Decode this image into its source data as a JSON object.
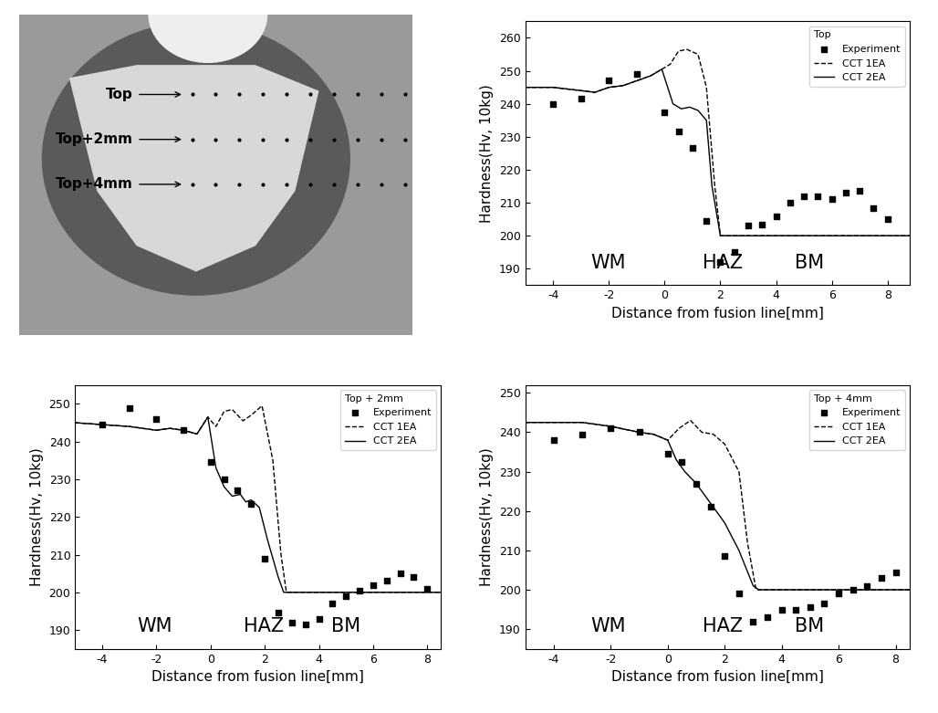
{
  "macrograph": {
    "labels": [
      "Top",
      "Top+2mm",
      "Top+4mm"
    ]
  },
  "chart_data": [
    {
      "type": "line",
      "title": "Top",
      "x_label": "Distance from fusion line[mm]",
      "y_label": "Hardness(Hv, 10kg)",
      "annotations": [
        "WM",
        "HAZ",
        "BM"
      ],
      "legend": "upper right",
      "xlim": [
        -5,
        8.8
      ],
      "xticks": [
        -4,
        -2,
        0,
        2,
        4,
        6,
        8
      ],
      "ylim": [
        185,
        265
      ],
      "yticks": [
        190,
        200,
        210,
        220,
        230,
        240,
        250,
        260
      ],
      "series": [
        {
          "name": "Experiment",
          "type": "scatter",
          "marker": "square",
          "color": "#000000",
          "x": [
            -4,
            -3,
            -2,
            -1,
            0,
            0.5,
            1,
            1.5,
            2,
            2.5,
            3,
            3.5,
            4,
            4.5,
            5,
            5.5,
            6,
            6.5,
            7,
            7.5,
            8
          ],
          "values": [
            240,
            241.5,
            247,
            249,
            237.5,
            231.5,
            226.5,
            204.5,
            192,
            195,
            203,
            203.5,
            206,
            210,
            212,
            212,
            211,
            213,
            213.5,
            208.5,
            205
          ]
        },
        {
          "name": "CCT 1EA",
          "type": "line",
          "line_style": "dashed",
          "color": "#000000",
          "x": [
            -5,
            -4,
            -3,
            -2.5,
            -2,
            -1.5,
            -1,
            -0.5,
            -0.1,
            0.2,
            0.5,
            0.8,
            1.2,
            1.5,
            1.8,
            2,
            8.8
          ],
          "values": [
            245,
            245,
            244,
            243.5,
            245,
            245.5,
            247,
            248.5,
            250.5,
            252,
            256,
            256.5,
            255,
            245,
            215,
            200,
            200
          ]
        },
        {
          "name": "CCT 2EA",
          "type": "line",
          "line_style": "solid",
          "color": "#000000",
          "x": [
            -5,
            -4,
            -3,
            -2.5,
            -2,
            -1.5,
            -1,
            -0.5,
            -0.1,
            0.3,
            0.6,
            0.9,
            1.2,
            1.5,
            1.7,
            2,
            8.8
          ],
          "values": [
            245,
            245,
            244,
            243.5,
            245,
            245.5,
            247,
            248.5,
            250.5,
            240,
            238.5,
            239,
            238,
            235,
            215,
            200,
            200
          ]
        }
      ]
    },
    {
      "type": "line",
      "title": "Top + 2mm",
      "x_label": "Distance from fusion line[mm]",
      "y_label": "Hardness(Hv, 10kg)",
      "annotations": [
        "WM",
        "HAZ",
        "BM"
      ],
      "legend": "upper right",
      "xlim": [
        -5,
        8.5
      ],
      "xticks": [
        -4,
        -2,
        0,
        2,
        4,
        6,
        8
      ],
      "ylim": [
        185,
        255
      ],
      "yticks": [
        190,
        200,
        210,
        220,
        230,
        240,
        250
      ],
      "series": [
        {
          "name": "Experiment",
          "type": "scatter",
          "marker": "square",
          "color": "#000000",
          "x": [
            -4,
            -3,
            -2,
            -1,
            0,
            0.5,
            1,
            1.5,
            2,
            2.5,
            3,
            3.5,
            4,
            4.5,
            5,
            5.5,
            6,
            6.5,
            7,
            7.5,
            8
          ],
          "values": [
            244.5,
            249,
            246,
            243,
            234.5,
            230,
            227,
            223.5,
            209,
            194.5,
            192,
            191.5,
            193,
            197,
            199,
            200.5,
            202,
            203,
            205,
            204,
            201
          ]
        },
        {
          "name": "CCT 1EA",
          "type": "line",
          "line_style": "dashed",
          "color": "#000000",
          "x": [
            -5,
            -4,
            -3,
            -2,
            -1.5,
            -1,
            -0.5,
            -0.1,
            0.2,
            0.5,
            0.8,
            1.2,
            1.5,
            1.9,
            2.3,
            2.6,
            2.8,
            8.5
          ],
          "values": [
            245,
            244.5,
            244,
            243,
            243.5,
            243,
            242,
            246.5,
            244,
            248,
            248.5,
            245.5,
            247,
            249.5,
            235,
            210,
            200,
            200
          ]
        },
        {
          "name": "CCT 2EA",
          "type": "line",
          "line_style": "solid",
          "color": "#000000",
          "x": [
            -5,
            -4,
            -3,
            -2,
            -1.5,
            -1,
            -0.5,
            -0.1,
            0.2,
            0.5,
            0.8,
            1.1,
            1.3,
            1.5,
            1.8,
            2.1,
            2.5,
            2.7,
            8.5
          ],
          "values": [
            245,
            244.5,
            244,
            243,
            243.5,
            243,
            242,
            246.5,
            233,
            228,
            225.5,
            226,
            224,
            224.5,
            222.5,
            214,
            204,
            200,
            200
          ]
        }
      ]
    },
    {
      "type": "line",
      "title": "Top + 4mm",
      "x_label": "Distance from fusion line[mm]",
      "y_label": "Hardness(Hv, 10kg)",
      "annotations": [
        "WM",
        "HAZ",
        "BM"
      ],
      "legend": "upper right",
      "xlim": [
        -5,
        8.5
      ],
      "xticks": [
        -4,
        -2,
        0,
        2,
        4,
        6,
        8
      ],
      "ylim": [
        185,
        252
      ],
      "yticks": [
        190,
        200,
        210,
        220,
        230,
        240,
        250
      ],
      "series": [
        {
          "name": "Experiment",
          "type": "scatter",
          "marker": "square",
          "color": "#000000",
          "x": [
            -4,
            -3,
            -2,
            -1,
            0,
            0.5,
            1,
            1.5,
            2,
            2.5,
            3,
            3.5,
            4,
            4.5,
            5,
            5.5,
            6,
            6.5,
            7,
            7.5,
            8
          ],
          "values": [
            238,
            239.5,
            241,
            240,
            234.5,
            232.5,
            227,
            221,
            208.5,
            199,
            192,
            193,
            195,
            195,
            195.5,
            196.5,
            199,
            200,
            201,
            203,
            204.5
          ]
        },
        {
          "name": "CCT 1EA",
          "type": "line",
          "line_style": "dashed",
          "color": "#000000",
          "x": [
            -5,
            -3,
            -2,
            -1,
            -0.5,
            0,
            0.4,
            0.8,
            1.2,
            1.6,
            2,
            2.5,
            2.8,
            3.1,
            8.5
          ],
          "values": [
            242.5,
            242.5,
            241.5,
            240,
            239.5,
            238,
            241,
            243,
            240,
            239.5,
            237,
            230,
            212,
            200,
            200
          ]
        },
        {
          "name": "CCT 2EA",
          "type": "line",
          "line_style": "solid",
          "color": "#000000",
          "x": [
            -5,
            -3,
            -2,
            -1,
            -0.5,
            0,
            0.3,
            0.6,
            1,
            1.5,
            2,
            2.5,
            3,
            3.2,
            8.5
          ],
          "values": [
            242.5,
            242.5,
            241.5,
            240,
            239.5,
            238,
            233,
            230,
            227,
            222,
            217,
            210,
            201,
            200,
            200
          ]
        }
      ]
    }
  ]
}
